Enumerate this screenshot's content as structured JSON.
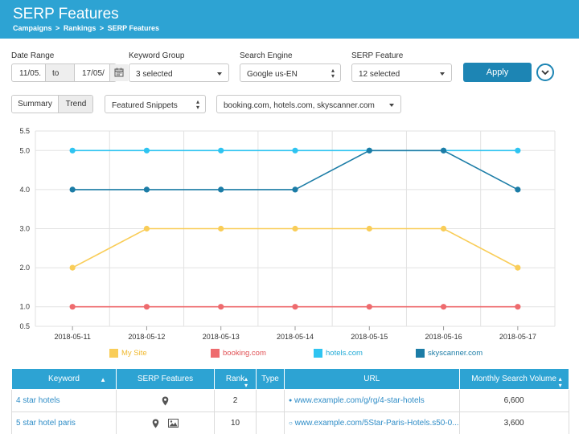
{
  "header": {
    "title": "SERP Features",
    "breadcrumb": [
      "Campaigns",
      "Rankings",
      "SERP Features"
    ],
    "separator": ">"
  },
  "filters": {
    "date_range_label": "Date Range",
    "date_from": "11/05.",
    "date_to_label": "to",
    "date_to": "17/05/",
    "keyword_group_label": "Keyword Group",
    "keyword_group_value": "3 selected",
    "search_engine_label": "Search Engine",
    "search_engine_value": "Google us-EN",
    "serp_feature_label": "SERP Feature",
    "serp_feature_value": "12 selected",
    "apply_label": "Apply"
  },
  "view": {
    "summary_label": "Summary",
    "trend_label": "Trend",
    "feature_select": "Featured Snippets",
    "competitors_select": "booking.com, hotels.com, skyscanner.com"
  },
  "chart_data": {
    "type": "line",
    "x": [
      "2018-05-11",
      "2018-05-12",
      "2018-05-13",
      "2018-05-14",
      "2018-05-15",
      "2018-05-16",
      "2018-05-17"
    ],
    "ylim": [
      0.5,
      5.5
    ],
    "yticks": [
      "5.5",
      "5.0",
      "4.0",
      "3.0",
      "2.0",
      "1.0",
      "0.5"
    ],
    "ytick_values": [
      5.5,
      5.0,
      4.0,
      3.0,
      2.0,
      1.0,
      0.5
    ],
    "grid": true,
    "legend_position": "bottom",
    "series": [
      {
        "name": "My Site",
        "color": "#f9cd58",
        "values": [
          2,
          3,
          3,
          3,
          3,
          3,
          2
        ]
      },
      {
        "name": "booking.com",
        "color": "#ee6b6e",
        "values": [
          1,
          1,
          1,
          1,
          1,
          1,
          1
        ]
      },
      {
        "name": "hotels.com",
        "color": "#2ec4f1",
        "values": [
          5,
          5,
          5,
          5,
          5,
          5,
          5
        ]
      },
      {
        "name": "skyscanner.com",
        "color": "#1b7ca6",
        "values": [
          4,
          4,
          4,
          4,
          5,
          5,
          4
        ]
      }
    ]
  },
  "table": {
    "columns": [
      "Keyword",
      "SERP Features",
      "Rank",
      "Type",
      "URL",
      "Monthly Search Volume"
    ],
    "rows": [
      {
        "keyword": "4 star hotels",
        "features": [
          "map-pin-icon"
        ],
        "rank": "2",
        "type": "",
        "url": "www.example.com/g/rg/4-star-hotels",
        "url_marker": "filled",
        "volume": "6,600"
      },
      {
        "keyword": "5 star hotel paris",
        "features": [
          "map-pin-icon",
          "image-icon"
        ],
        "rank": "10",
        "type": "",
        "url": "www.example.com/5Star-Paris-Hotels.s50-0...",
        "url_marker": "hollow",
        "volume": "3,600"
      }
    ]
  },
  "colors": {
    "header": "#2da3d3",
    "apply_button": "#1d85b4",
    "link": "#2f8dc7"
  }
}
